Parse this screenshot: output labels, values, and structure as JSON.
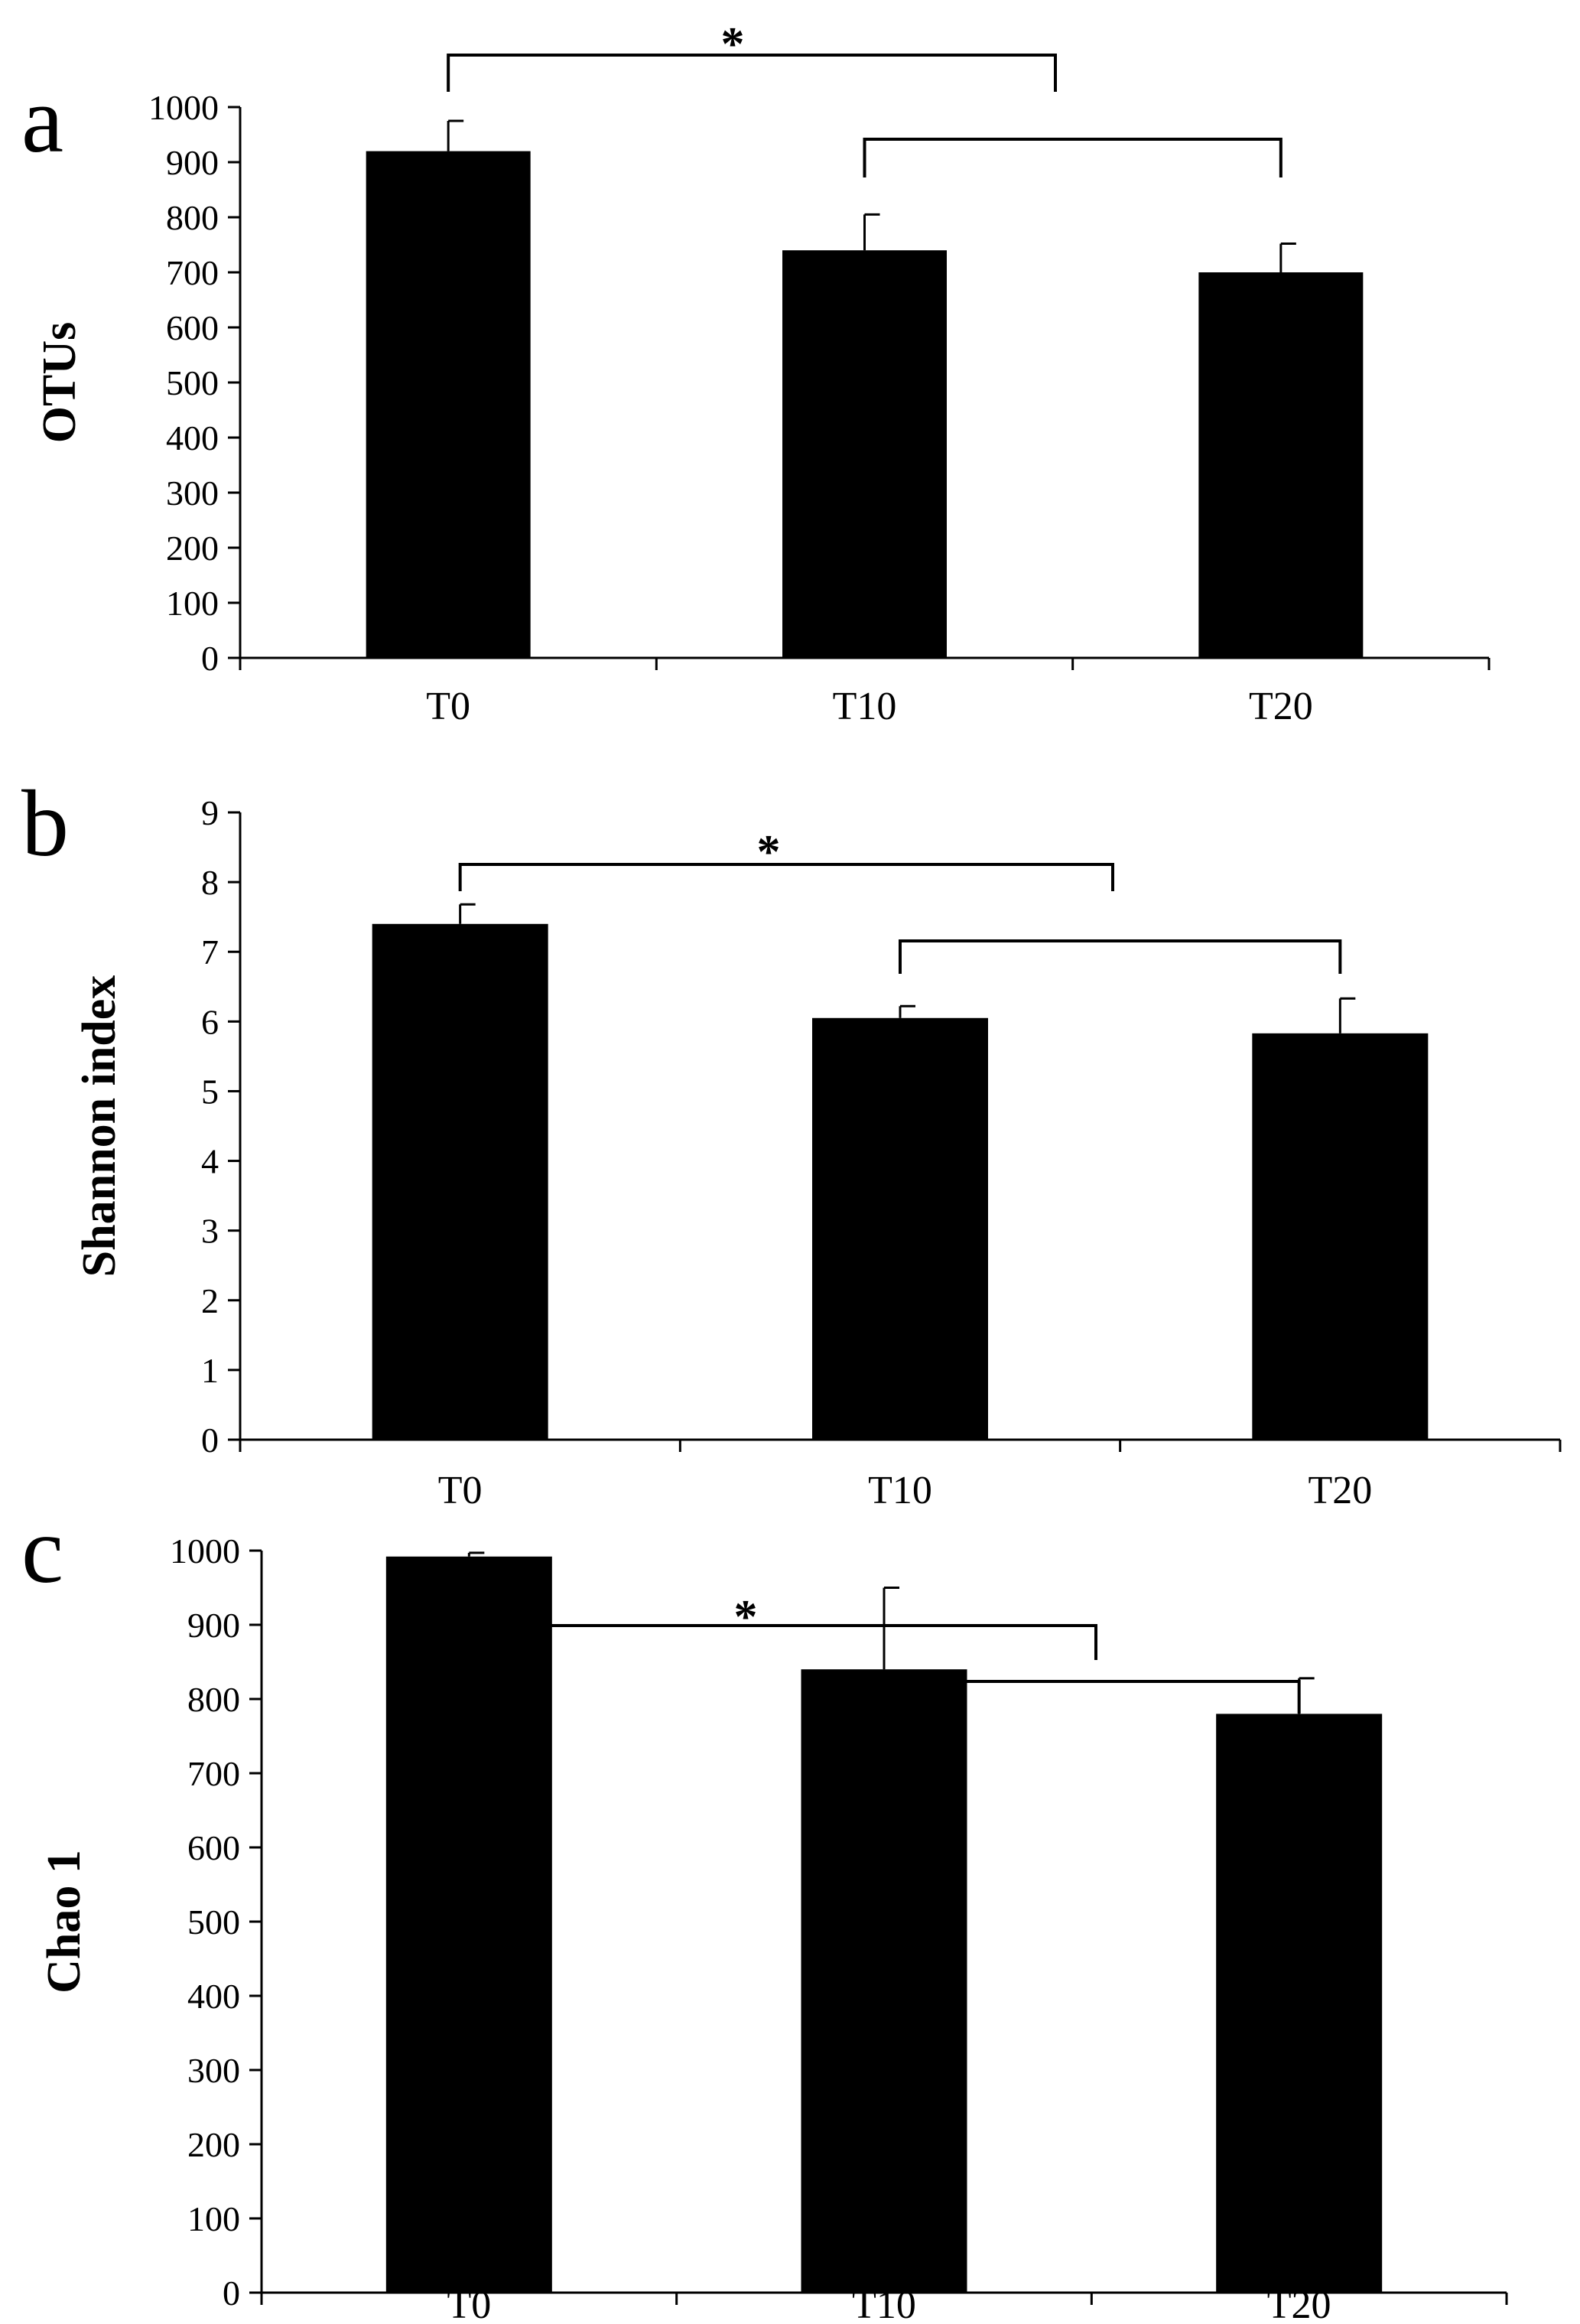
{
  "figure": {
    "background": "#ffffff",
    "bar_color": "#000000"
  },
  "chart_data": [
    {
      "panel": "a",
      "type": "bar",
      "categories": [
        "T0",
        "T10",
        "T20"
      ],
      "values": [
        920,
        740,
        700
      ],
      "errors": [
        55,
        65,
        52
      ],
      "ylabel": "OTUs",
      "ylim": [
        0,
        1000
      ],
      "yticks": [
        0,
        100,
        200,
        300,
        400,
        500,
        600,
        700,
        800,
        900,
        1000
      ],
      "significance": [
        {
          "from": "T0",
          "to": "T10|T20",
          "label": "*"
        },
        {
          "from": "T10",
          "to": "T20",
          "label": ""
        }
      ]
    },
    {
      "panel": "b",
      "type": "bar",
      "categories": [
        "T0",
        "T10",
        "T20"
      ],
      "values": [
        7.4,
        6.05,
        5.83
      ],
      "errors": [
        0.28,
        0.17,
        0.5
      ],
      "ylabel": "Shannon index",
      "ylim": [
        0,
        9
      ],
      "yticks": [
        0,
        1,
        2,
        3,
        4,
        5,
        6,
        7,
        8,
        9
      ],
      "significance": [
        {
          "from": "T0",
          "to": "T10|T20",
          "label": "*"
        },
        {
          "from": "T10",
          "to": "T20",
          "label": ""
        }
      ]
    },
    {
      "panel": "c",
      "type": "bar",
      "categories": [
        "T0",
        "T10",
        "T20"
      ],
      "values": [
        992,
        840,
        780
      ],
      "errors": [
        5,
        110,
        48
      ],
      "ylabel": "Chao 1",
      "ylim": [
        0,
        1000
      ],
      "yticks": [
        0,
        100,
        200,
        300,
        400,
        500,
        600,
        700,
        800,
        900,
        1000
      ],
      "significance": [
        {
          "from": "T0",
          "to": "T10|T20",
          "label": "*"
        },
        {
          "from": "T10",
          "to": "T20",
          "label": ""
        }
      ]
    }
  ]
}
